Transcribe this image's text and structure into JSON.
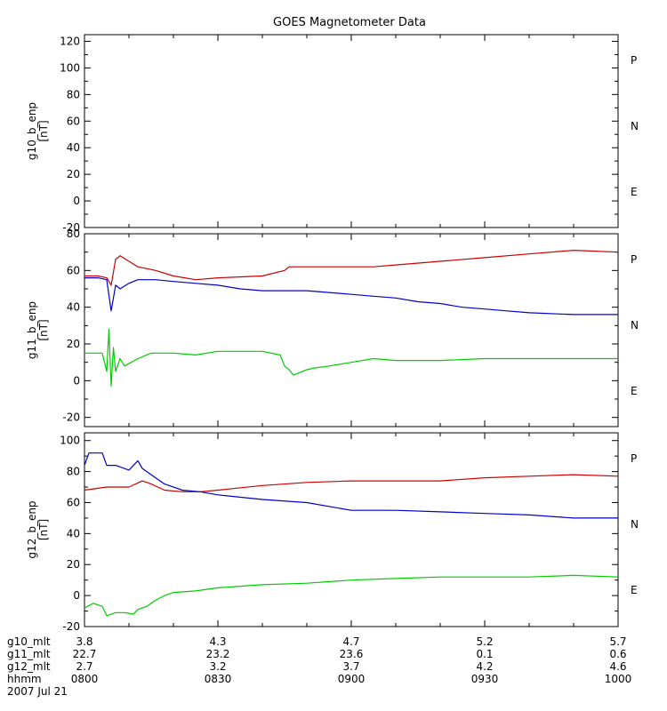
{
  "chart_data": {
    "type": "line",
    "title": "GOES Magnetometer Data",
    "x": {
      "range": [
        0,
        120
      ],
      "tick_labels": [
        "0800",
        "0830",
        "0900",
        "0930",
        "1000"
      ],
      "label": "hhmm",
      "date": "2007 Jul 21"
    },
    "mlt_rows": [
      {
        "label": "g10_mlt",
        "values": [
          "3.8",
          "4.3",
          "4.7",
          "5.2",
          "5.7"
        ]
      },
      {
        "label": "g11_mlt",
        "values": [
          "22.7",
          "23.2",
          "23.6",
          "0.1",
          "0.6"
        ]
      },
      {
        "label": "g12_mlt",
        "values": [
          "2.7",
          "3.2",
          "3.7",
          "4.2",
          "4.6"
        ]
      }
    ],
    "panels": [
      {
        "name": "g10",
        "ylabel": "g10_b_enp",
        "yunits": "[nT]",
        "ylim": [
          -20,
          125
        ],
        "yticks": [
          -20,
          0,
          20,
          40,
          60,
          80,
          100,
          120
        ],
        "legend": [
          {
            "label": "P",
            "color": "#cc0000"
          },
          {
            "label": "N",
            "color": "#00cc00"
          },
          {
            "label": "E",
            "color": "#0000cc"
          }
        ],
        "series": []
      },
      {
        "name": "g11",
        "ylabel": "g11_b_enp",
        "yunits": "[nT]",
        "ylim": [
          -25,
          80
        ],
        "yticks": [
          -20,
          0,
          20,
          40,
          60,
          80
        ],
        "legend": [
          {
            "label": "P",
            "color": "#cc0000"
          },
          {
            "label": "N",
            "color": "#00cc00"
          },
          {
            "label": "E",
            "color": "#0000cc"
          }
        ],
        "series": [
          {
            "name": "P",
            "color": "#cc0000",
            "x": [
              0,
              3,
              5,
              6,
              7,
              8,
              10,
              12,
              16,
              20,
              25,
              30,
              40,
              45,
              46,
              48,
              55,
              60,
              65,
              70,
              80,
              90,
              100,
              110,
              120
            ],
            "y": [
              57,
              57,
              56,
              52,
              66,
              68,
              65,
              62,
              60,
              57,
              55,
              56,
              57,
              60,
              62,
              62,
              62,
              62,
              62,
              63,
              65,
              67,
              69,
              71,
              70
            ]
          },
          {
            "name": "E",
            "color": "#0000cc",
            "x": [
              0,
              3,
              5,
              6,
              7,
              8,
              10,
              12,
              16,
              20,
              25,
              30,
              35,
              40,
              45,
              50,
              55,
              60,
              65,
              70,
              75,
              80,
              85,
              90,
              95,
              100,
              110,
              120
            ],
            "y": [
              56,
              56,
              55,
              38,
              52,
              50,
              53,
              55,
              55,
              54,
              53,
              52,
              50,
              49,
              49,
              49,
              48,
              47,
              46,
              45,
              43,
              42,
              40,
              39,
              38,
              37,
              36,
              36
            ]
          },
          {
            "name": "N",
            "color": "#00cc00",
            "x": [
              0,
              4,
              5,
              5.5,
              6,
              6.5,
              7,
              8,
              9,
              12,
              15,
              20,
              25,
              30,
              35,
              40,
              44,
              45,
              46,
              47,
              48,
              50,
              52,
              55,
              60,
              65,
              70,
              80,
              90,
              100,
              110,
              120
            ],
            "y": [
              15,
              15,
              5,
              28,
              -3,
              18,
              5,
              12,
              8,
              12,
              15,
              15,
              14,
              16,
              16,
              16,
              14,
              8,
              6,
              3,
              4,
              6,
              7,
              8,
              10,
              12,
              11,
              11,
              12,
              12,
              12,
              12
            ]
          }
        ]
      },
      {
        "name": "g12",
        "ylabel": "g12_b_enp",
        "yunits": "[nT]",
        "ylim": [
          -20,
          105
        ],
        "yticks": [
          -20,
          0,
          20,
          40,
          60,
          80,
          100
        ],
        "legend": [
          {
            "label": "P",
            "color": "#cc0000"
          },
          {
            "label": "N",
            "color": "#00cc00"
          },
          {
            "label": "E",
            "color": "#0000cc"
          }
        ],
        "series": [
          {
            "name": "P",
            "color": "#cc0000",
            "x": [
              0,
              5,
              10,
              13,
              15,
              18,
              22,
              26,
              30,
              40,
              50,
              60,
              70,
              80,
              90,
              100,
              110,
              120
            ],
            "y": [
              68,
              70,
              70,
              74,
              72,
              68,
              67,
              67,
              68,
              71,
              73,
              74,
              74,
              74,
              76,
              77,
              78,
              77
            ]
          },
          {
            "name": "E",
            "color": "#0000cc",
            "x": [
              0,
              1,
              4,
              5,
              7,
              10,
              12,
              13,
              15,
              18,
              22,
              26,
              30,
              40,
              50,
              60,
              70,
              80,
              90,
              100,
              110,
              120
            ],
            "y": [
              84,
              92,
              92,
              84,
              84,
              81,
              87,
              82,
              78,
              72,
              68,
              67,
              65,
              62,
              60,
              55,
              55,
              54,
              53,
              52,
              50,
              50
            ]
          },
          {
            "name": "N",
            "color": "#00cc00",
            "x": [
              0,
              2,
              4,
              5,
              7,
              9,
              11,
              12,
              14,
              16,
              18,
              20,
              25,
              30,
              40,
              50,
              60,
              70,
              80,
              90,
              100,
              110,
              120
            ],
            "y": [
              -8,
              -5,
              -7,
              -13,
              -11,
              -11,
              -12,
              -9,
              -7,
              -3,
              0,
              2,
              3,
              5,
              7,
              8,
              10,
              11,
              12,
              12,
              12,
              13,
              12
            ]
          }
        ]
      }
    ]
  }
}
